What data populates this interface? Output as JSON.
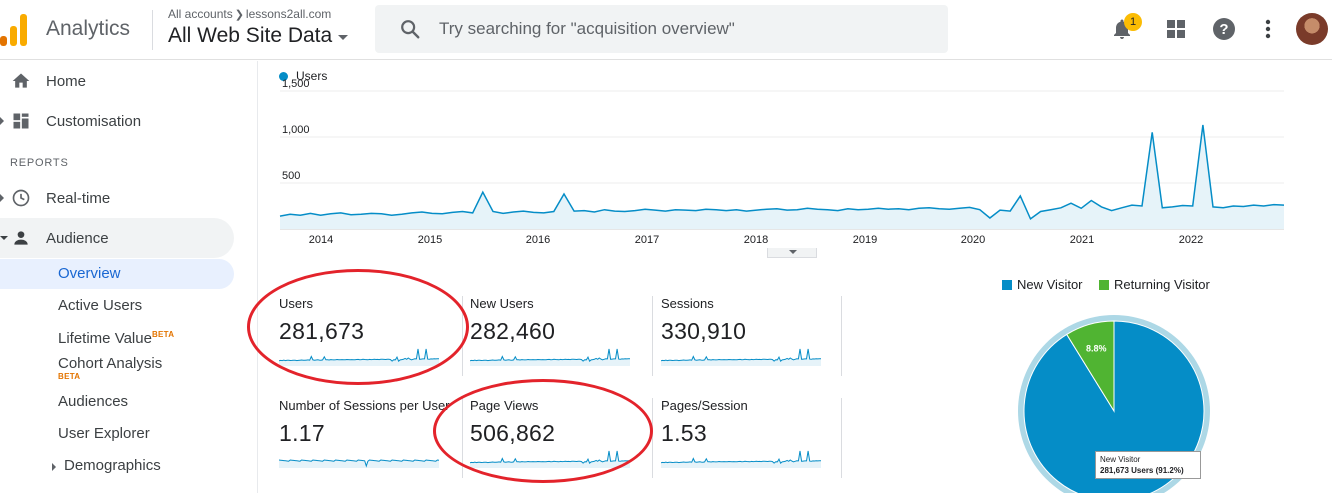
{
  "header": {
    "app_name": "Analytics",
    "crumb_all": "All accounts",
    "crumb_property": "lessons2all.com",
    "view_name": "All Web Site Data",
    "search_placeholder": "Try searching for \"acquisition overview\"",
    "notification_count": "1",
    "icons": [
      "notifications-icon",
      "apps-grid-icon",
      "help-icon",
      "more-vert-icon"
    ]
  },
  "sidebar": {
    "home": "Home",
    "customisation": "Customisation",
    "section_reports": "REPORTS",
    "realtime": "Real-time",
    "audience": "Audience",
    "sub_items": [
      "Overview",
      "Active Users",
      "Lifetime Value",
      "Cohort Analysis",
      "Audiences",
      "User Explorer",
      "Demographics"
    ],
    "beta_label": "BETA"
  },
  "chart_data": [
    {
      "type": "line",
      "title": "",
      "series": [
        {
          "name": "Users",
          "values": [
            140,
            160,
            150,
            170,
            150,
            165,
            175,
            155,
            160,
            170,
            165,
            150,
            160,
            175,
            185,
            170,
            165,
            180,
            190,
            175,
            400,
            190,
            170,
            185,
            195,
            180,
            175,
            190,
            380,
            195,
            200,
            185,
            210,
            195,
            190,
            200,
            215,
            205,
            195,
            210,
            205,
            200,
            215,
            210,
            200,
            210,
            195,
            205,
            215,
            220,
            205,
            210,
            225,
            215,
            210,
            200,
            220,
            210,
            215,
            225,
            215,
            220,
            210,
            225,
            230,
            220,
            215,
            225,
            235,
            210,
            120,
            205,
            195,
            360,
            110,
            190,
            210,
            230,
            280,
            225,
            310,
            240,
            200,
            230,
            260,
            250,
            1050,
            230,
            240,
            255,
            250,
            1130,
            240,
            230,
            250,
            245,
            260,
            250,
            265,
            260
          ],
          "color": "#058dc7"
        }
      ],
      "x_ticks": [
        "2014",
        "2015",
        "2016",
        "2017",
        "2018",
        "2019",
        "2020",
        "2021",
        "2022"
      ],
      "y_ticks": [
        "1,500",
        "1,000",
        "500"
      ],
      "ylim": [
        0,
        1500
      ]
    },
    {
      "type": "pie",
      "labels": [
        "New Visitor",
        "Returning Visitor"
      ],
      "values": [
        91.2,
        8.8
      ],
      "colors": [
        "#058dc7",
        "#50b432"
      ],
      "slice_labels": [
        "",
        "8.8%"
      ],
      "tooltip_title": "New Visitor",
      "tooltip_value": "281,673 Users (91.2%)"
    }
  ],
  "metrics": [
    {
      "label": "Users",
      "value": "281,673"
    },
    {
      "label": "New Users",
      "value": "282,460"
    },
    {
      "label": "Sessions",
      "value": "330,910"
    },
    {
      "label": "Number of Sessions per User",
      "value": "1.17"
    },
    {
      "label": "Page Views",
      "value": "506,862"
    },
    {
      "label": "Pages/Session",
      "value": "1.53"
    }
  ]
}
